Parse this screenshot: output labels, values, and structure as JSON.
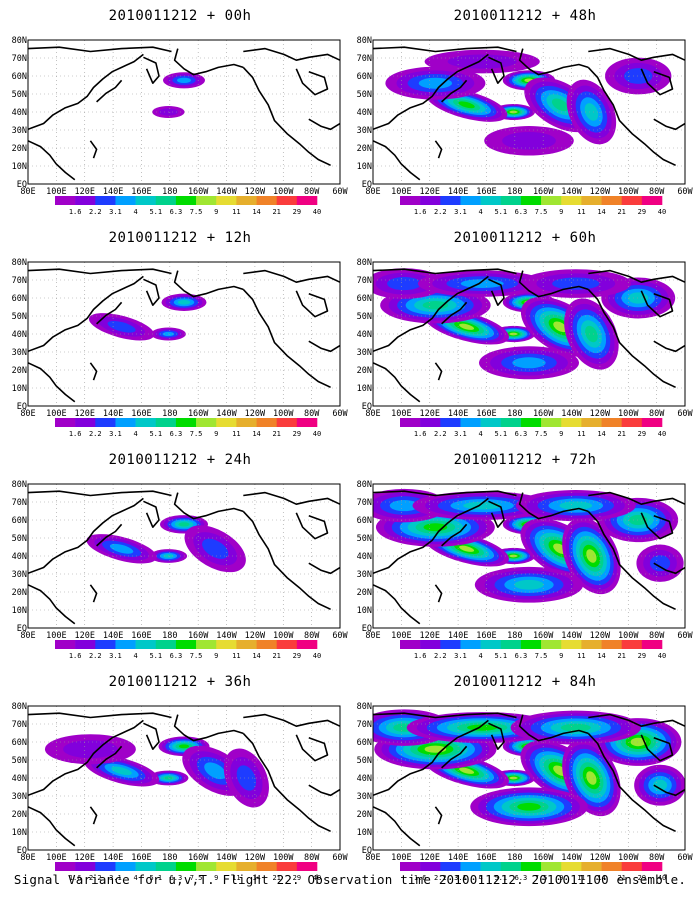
{
  "panels": [
    {
      "title": "2010011212 + 00h",
      "intensity": 0.12
    },
    {
      "title": "2010011212 + 12h",
      "intensity": 0.22
    },
    {
      "title": "2010011212 + 24h",
      "intensity": 0.32
    },
    {
      "title": "2010011212 + 36h",
      "intensity": 0.42
    },
    {
      "title": "2010011212 + 48h",
      "intensity": 0.55
    },
    {
      "title": "2010011212 + 60h",
      "intensity": 0.7
    },
    {
      "title": "2010011212 + 72h",
      "intensity": 0.82
    },
    {
      "title": "2010011212 + 84h",
      "intensity": 0.95
    }
  ],
  "lat_labels": [
    "80N",
    "70N",
    "60N",
    "50N",
    "40N",
    "30N",
    "20N",
    "10N",
    "EQ"
  ],
  "lon_labels": [
    "80E",
    "100E",
    "120E",
    "140E",
    "160E",
    "180",
    "160W",
    "140W",
    "120W",
    "100W",
    "80W",
    "60W"
  ],
  "colorbar": {
    "colors": [
      "#a000c8",
      "#8200dc",
      "#1e3cff",
      "#00a0ff",
      "#00c8c8",
      "#00d28c",
      "#00dc00",
      "#a0e632",
      "#e6dc32",
      "#e6af2d",
      "#f08228",
      "#fa3c3c",
      "#f00082"
    ],
    "labels": [
      "1.6",
      "2.2",
      "3.1",
      "4",
      "5.1",
      "6.3",
      "7.5",
      "9",
      "11",
      "14",
      "21",
      "29",
      "40"
    ]
  },
  "footer": "Signal Variance for u,v,T. Flight 22. Observation time 2010011212. 2010011100 ensemble."
}
